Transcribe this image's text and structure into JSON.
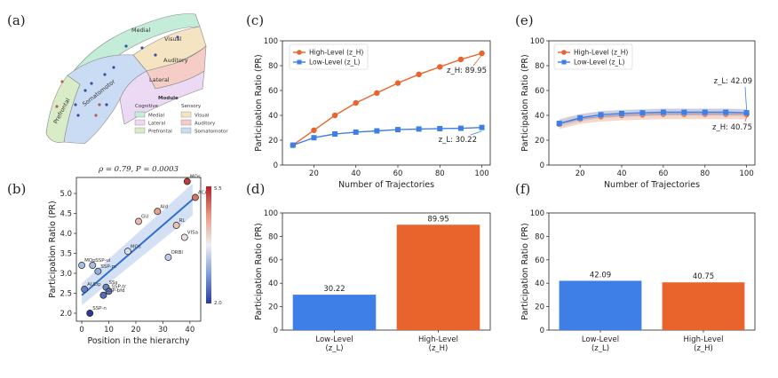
{
  "panel_labels": [
    "(a)",
    "(b)",
    "(c)",
    "(d)",
    "(e)",
    "(f)"
  ],
  "colors": {
    "high": "#e8642c",
    "low": "#3d7fe6",
    "band_high": "#f4b79a",
    "band_low": "#a9c5f1"
  },
  "map": {
    "region_labels": [
      "Medial",
      "Visual",
      "Auditory",
      "Lateral",
      "Somatomotor",
      "Prefrontal"
    ],
    "legend_title": "Module",
    "legend_headers": [
      "Cognitive",
      "Sensory"
    ],
    "legend_items": [
      {
        "name": "Medial",
        "color": "#c3ecd9"
      },
      {
        "name": "Visual",
        "color": "#f4e4c1"
      },
      {
        "name": "Lateral",
        "color": "#ecd9f3"
      },
      {
        "name": "Auditory",
        "color": "#f5ccc6"
      },
      {
        "name": "Prefrontal",
        "color": "#d9ecc8"
      },
      {
        "name": "Somatomotor",
        "color": "#c9dcf3"
      }
    ]
  },
  "chart_data": [
    {
      "panel": "(b)",
      "type": "scatter",
      "title": "ρ = 0.79,  P = 0.0003",
      "xlabel": "Position in the hierarchy",
      "ylabel": "Participation Ratio (PR)",
      "xlim": [
        -2,
        44
      ],
      "ylim": [
        1.8,
        5.4
      ],
      "xticks": [
        0,
        10,
        20,
        30,
        40
      ],
      "yticks": [
        2.0,
        2.5,
        3.0,
        3.5,
        4.0,
        4.5,
        5.0
      ],
      "yticklabels": [
        "2.0",
        "2.5",
        "3.0",
        "3.5",
        "4.0",
        "4.5",
        "5.0"
      ],
      "colorbar": {
        "min": "2.0",
        "max": "5.5"
      },
      "fit": {
        "x": [
          0,
          41
        ],
        "y": [
          2.45,
          4.85
        ]
      },
      "points": [
        {
          "x": 0,
          "y": 3.2,
          "label": "MOp",
          "pr": 3.2
        },
        {
          "x": 4,
          "y": 3.2,
          "label": "SSP-ul",
          "pr": 3.2
        },
        {
          "x": 6,
          "y": 3.05,
          "label": "SSP-m",
          "pr": 3.05
        },
        {
          "x": 1,
          "y": 2.6,
          "label": "AUDp",
          "pr": 2.6
        },
        {
          "x": 9,
          "y": 2.65,
          "label": "SSs",
          "pr": 2.65
        },
        {
          "x": 10,
          "y": 2.55,
          "label": "SSP-tr",
          "pr": 2.55
        },
        {
          "x": 8,
          "y": 2.45,
          "label": "SSP-bfd",
          "pr": 2.45
        },
        {
          "x": 3,
          "y": 2.0,
          "label": "SSP-n",
          "pr": 2.0
        },
        {
          "x": 17,
          "y": 3.55,
          "label": "MOs",
          "pr": 3.55
        },
        {
          "x": 21,
          "y": 4.3,
          "label": "GU",
          "pr": 4.3
        },
        {
          "x": 28,
          "y": 4.55,
          "label": "AId",
          "pr": 4.55
        },
        {
          "x": 32,
          "y": 3.4,
          "label": "ORBl",
          "pr": 3.4
        },
        {
          "x": 35,
          "y": 4.2,
          "label": "RL",
          "pr": 4.2
        },
        {
          "x": 38,
          "y": 3.9,
          "label": "VISa",
          "pr": 3.9
        },
        {
          "x": 39,
          "y": 5.3,
          "label": "MOs",
          "pr": 5.3
        },
        {
          "x": 42,
          "y": 4.9,
          "label": "ACAd",
          "pr": 4.9
        }
      ]
    },
    {
      "panel": "(c)",
      "type": "line",
      "xlabel": "Number of Trajectories",
      "ylabel": "Participation Ratio (PR)",
      "xlim": [
        5,
        104
      ],
      "ylim": [
        0,
        100
      ],
      "xticks": [
        20,
        40,
        60,
        80,
        100
      ],
      "yticks": [
        0,
        20,
        40,
        60,
        80,
        100
      ],
      "x": [
        10,
        20,
        30,
        40,
        50,
        60,
        70,
        80,
        90,
        100
      ],
      "series": [
        {
          "name": "High-Level (z_H)",
          "key": "high",
          "values": [
            16,
            28,
            40,
            50,
            58,
            66,
            73,
            79,
            85,
            89.95
          ]
        },
        {
          "name": "Low-Level (z_L)",
          "key": "low",
          "values": [
            16,
            22,
            25,
            26.5,
            27.5,
            28.5,
            29,
            29.3,
            29.6,
            30.22
          ]
        }
      ],
      "annotations": [
        "z_H: 89.95",
        "z_L: 30.22"
      ]
    },
    {
      "panel": "(e)",
      "type": "line",
      "xlabel": "Number of Trajectories",
      "ylabel": "Participation Ratio (PR)",
      "xlim": [
        5,
        104
      ],
      "ylim": [
        0,
        100
      ],
      "xticks": [
        20,
        40,
        60,
        80,
        100
      ],
      "yticks": [
        0,
        20,
        40,
        60,
        80,
        100
      ],
      "x": [
        10,
        20,
        30,
        40,
        50,
        60,
        70,
        80,
        90,
        100
      ],
      "series": [
        {
          "name": "High-Level (z_H)",
          "key": "high",
          "values": [
            33,
            37,
            39,
            40,
            40.5,
            41,
            41,
            41,
            41,
            40.75
          ]
        },
        {
          "name": "Low-Level (z_L)",
          "key": "low",
          "values": [
            33.5,
            38,
            40.5,
            41.5,
            42,
            42.5,
            42.5,
            42.5,
            42.5,
            42.09
          ]
        }
      ],
      "annotations": [
        "z_L: 42.09",
        "z_H: 40.75"
      ]
    },
    {
      "panel": "(d)",
      "type": "bar",
      "ylabel": "Participation Ratio (PR)",
      "ylim": [
        0,
        100
      ],
      "yticks": [
        0,
        20,
        40,
        60,
        80,
        100
      ],
      "categories": [
        "Low-Level\n(z_L)",
        "High-Level\n(z_H)"
      ],
      "keys": [
        "low",
        "high"
      ],
      "values": [
        30.22,
        89.95
      ],
      "value_labels": [
        "30.22",
        "89.95"
      ]
    },
    {
      "panel": "(f)",
      "type": "bar",
      "ylabel": "Participation Ratio (PR)",
      "ylim": [
        0,
        100
      ],
      "yticks": [
        0,
        20,
        40,
        60,
        80,
        100
      ],
      "categories": [
        "Low-Level\n(z_L)",
        "High-Level\n(z_H)"
      ],
      "keys": [
        "low",
        "high"
      ],
      "values": [
        42.09,
        40.75
      ],
      "value_labels": [
        "42.09",
        "40.75"
      ]
    }
  ]
}
